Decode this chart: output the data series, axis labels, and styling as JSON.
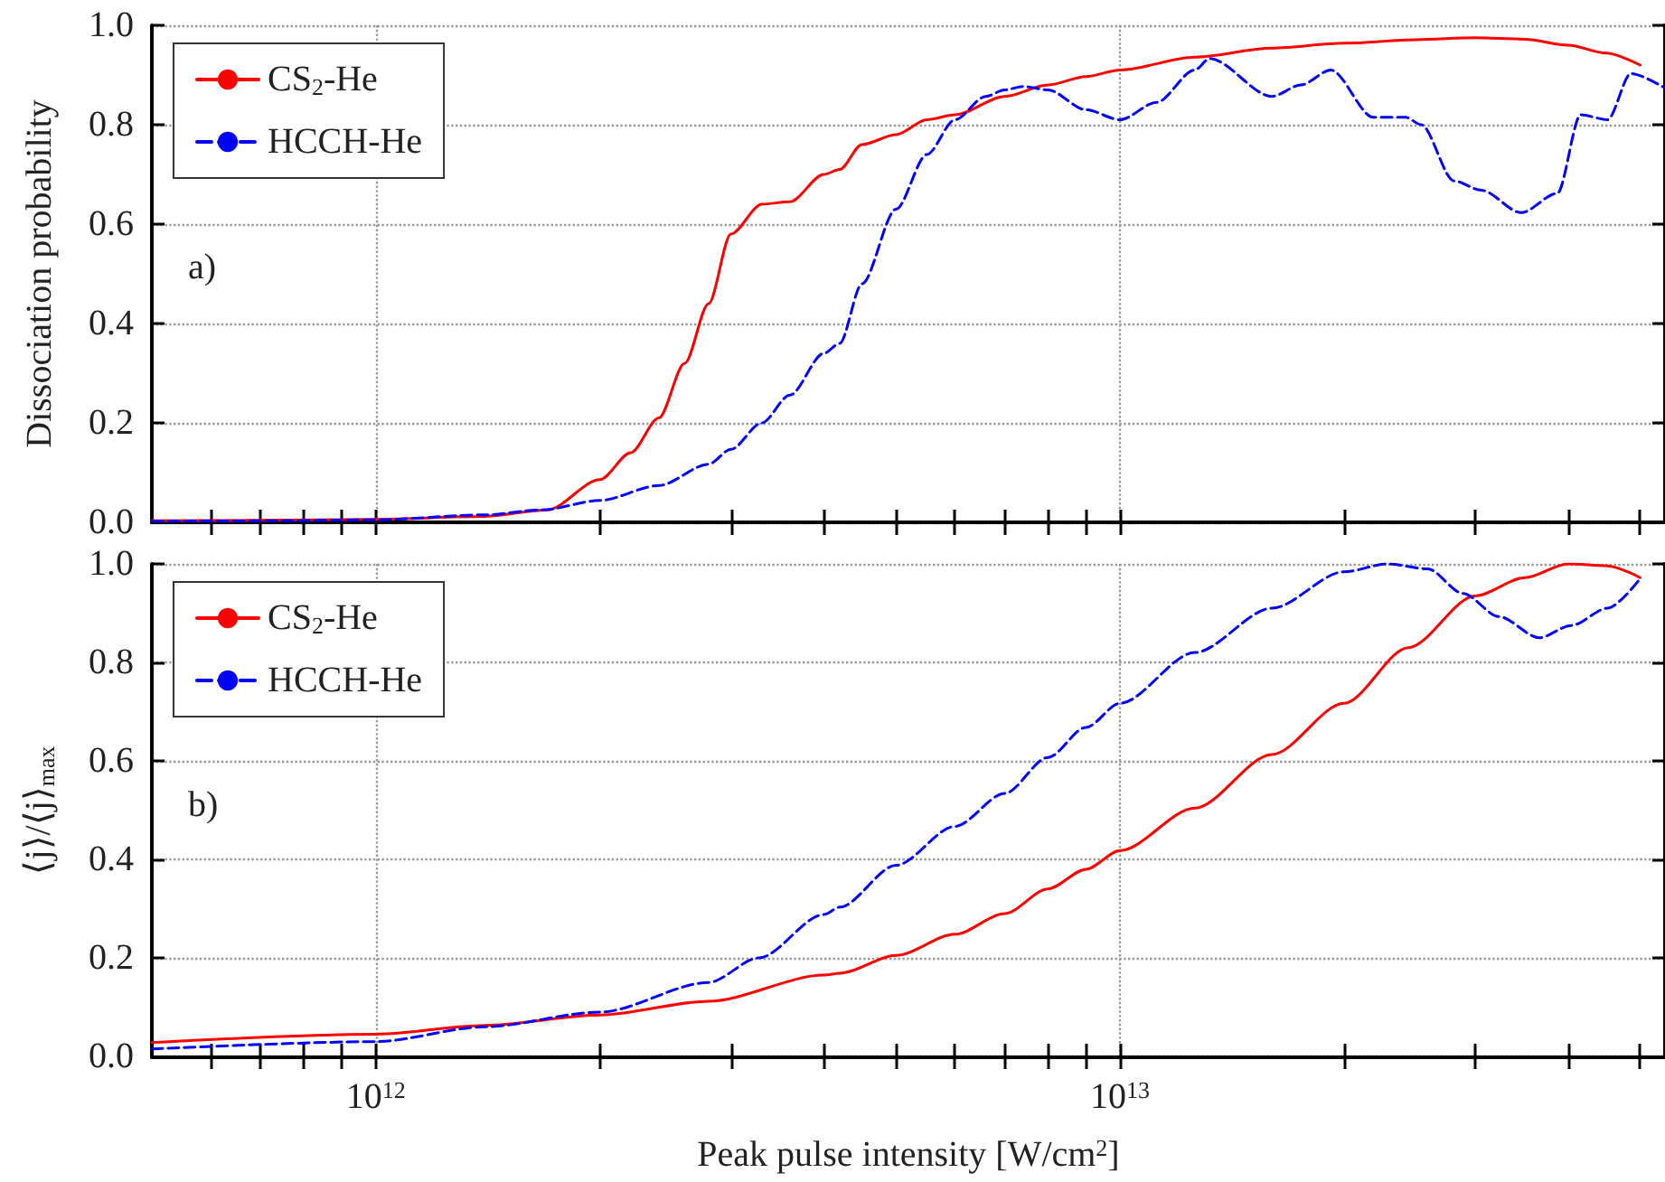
{
  "chart_data": [
    {
      "type": "line",
      "ylabel": "Dissociation probability",
      "annotations": [
        "a)"
      ],
      "log": "x",
      "grid": true,
      "legend": "top left",
      "marker": "none",
      "tick_labels": "y",
      "xlim": [
        500000000000.0,
        54000000000000.0
      ],
      "xticks": [
        {
          "value": 600000000000.0,
          "label": null
        },
        {
          "value": 700000000000.0,
          "label": null
        },
        {
          "value": 800000000000.0,
          "label": null
        },
        {
          "value": 900000000000.0,
          "label": null
        },
        {
          "value": 1000000000000.0,
          "label": null
        },
        {
          "value": 2000000000000.0,
          "label": null
        },
        {
          "value": 3000000000000.0,
          "label": null
        },
        {
          "value": 4000000000000.0,
          "label": null
        },
        {
          "value": 5000000000000.0,
          "label": null
        },
        {
          "value": 6000000000000.0,
          "label": null
        },
        {
          "value": 7000000000000.0,
          "label": null
        },
        {
          "value": 8000000000000.0,
          "label": null
        },
        {
          "value": 9000000000000.0,
          "label": null
        },
        {
          "value": 10000000000000.0,
          "label": null
        },
        {
          "value": 20000000000000.0,
          "label": null
        },
        {
          "value": 30000000000000.0,
          "label": null
        },
        {
          "value": 40000000000000.0,
          "label": null
        },
        {
          "value": 50000000000000.0,
          "label": null
        }
      ],
      "ylim": [
        0,
        1
      ],
      "yticks": [
        {
          "value": 0,
          "label": "0.0"
        },
        {
          "value": 0.2,
          "label": "0.2"
        },
        {
          "value": 0.4,
          "label": "0.4"
        },
        {
          "value": 0.6,
          "label": "0.6"
        },
        {
          "value": 0.8,
          "label": "0.8"
        },
        {
          "value": 1,
          "label": "1.0"
        }
      ],
      "series": [
        {
          "name": "CS$_{2}$-He",
          "color": "#ff0000",
          "line_style": "solid",
          "x": [
            500000000000.0,
            700000000000.0,
            1000000000000.0,
            1400000000000.0,
            1700000000000.0,
            2000000000000.0,
            2200000000000.0,
            2400000000000.0,
            2600000000000.0,
            2800000000000.0,
            3000000000000.0,
            3300000000000.0,
            3600000000000.0,
            4000000000000.0,
            4200000000000.0,
            4500000000000.0,
            5000000000000.0,
            5500000000000.0,
            6000000000000.0,
            7000000000000.0,
            8000000000000.0,
            9000000000000.0,
            10000000000000.0,
            12600000000000.0,
            16000000000000.0,
            20000000000000.0,
            25000000000000.0,
            30000000000000.0,
            35000000000000.0,
            40000000000000.0,
            45000000000000.0,
            50000000000000.0
          ],
          "values": [
            0.003,
            0.004,
            0.006,
            0.012,
            0.025,
            0.086,
            0.14,
            0.21,
            0.32,
            0.44,
            0.58,
            0.64,
            0.645,
            0.7,
            0.71,
            0.76,
            0.78,
            0.81,
            0.82,
            0.857,
            0.88,
            0.897,
            0.91,
            0.936,
            0.954,
            0.964,
            0.971,
            0.975,
            0.972,
            0.96,
            0.944,
            0.92
          ]
        },
        {
          "name": "HCCH-He",
          "color": "#0000ff",
          "line_style": "dashed",
          "x": [
            500000000000.0,
            700000000000.0,
            1000000000000.0,
            1400000000000.0,
            1670000000000.0,
            2000000000000.0,
            2400000000000.0,
            2800000000000.0,
            3000000000000.0,
            3300000000000.0,
            3600000000000.0,
            4000000000000.0,
            4200000000000.0,
            4500000000000.0,
            5000000000000.0,
            5500000000000.0,
            6000000000000.0,
            6600000000000.0,
            7000000000000.0,
            7400000000000.0,
            8000000000000.0,
            9000000000000.0,
            10000000000000.0,
            11200000000000.0,
            12600000000000.0,
            13200000000000.0,
            16000000000000.0,
            17500000000000.0,
            19200000000000.0,
            21900000000000.0,
            24200000000000.0,
            25400000000000.0,
            28100000000000.0,
            30600000000000.0,
            34600000000000.0,
            38700000000000.0,
            41600000000000.0,
            45200000000000.0,
            48600000000000.0,
            53800000000000.0
          ],
          "values": [
            0.002,
            0.003,
            0.005,
            0.015,
            0.025,
            0.044,
            0.074,
            0.117,
            0.147,
            0.2,
            0.256,
            0.34,
            0.36,
            0.48,
            0.63,
            0.74,
            0.81,
            0.857,
            0.87,
            0.877,
            0.87,
            0.83,
            0.81,
            0.845,
            0.91,
            0.933,
            0.857,
            0.88,
            0.91,
            0.815,
            0.815,
            0.8,
            0.687,
            0.668,
            0.623,
            0.662,
            0.82,
            0.81,
            0.903,
            0.875
          ]
        }
      ]
    },
    {
      "type": "line",
      "xlabel": "Peak pulse intensity [W/cm$^{2}$]",
      "ylabel": "⟨j⟩/⟨j⟩$_{max}$",
      "annotations": [
        "b)"
      ],
      "log": "x",
      "grid": true,
      "legend": "top left",
      "marker": "none",
      "xlim": [
        500000000000.0,
        54000000000000.0
      ],
      "xticks": [
        {
          "value": 600000000000.0,
          "label": null
        },
        {
          "value": 700000000000.0,
          "label": null
        },
        {
          "value": 800000000000.0,
          "label": null
        },
        {
          "value": 900000000000.0,
          "label": null
        },
        {
          "value": 1000000000000.0,
          "label": "10$^{12}$"
        },
        {
          "value": 2000000000000.0,
          "label": null
        },
        {
          "value": 3000000000000.0,
          "label": null
        },
        {
          "value": 4000000000000.0,
          "label": null
        },
        {
          "value": 5000000000000.0,
          "label": null
        },
        {
          "value": 6000000000000.0,
          "label": null
        },
        {
          "value": 7000000000000.0,
          "label": null
        },
        {
          "value": 8000000000000.0,
          "label": null
        },
        {
          "value": 9000000000000.0,
          "label": null
        },
        {
          "value": 10000000000000.0,
          "label": "10$^{13}$"
        },
        {
          "value": 20000000000000.0,
          "label": null
        },
        {
          "value": 30000000000000.0,
          "label": null
        },
        {
          "value": 40000000000000.0,
          "label": null
        },
        {
          "value": 50000000000000.0,
          "label": null
        }
      ],
      "ylim": [
        0,
        1
      ],
      "yticks": [
        {
          "value": 0,
          "label": "0.0"
        },
        {
          "value": 0.2,
          "label": "0.2"
        },
        {
          "value": 0.4,
          "label": "0.4"
        },
        {
          "value": 0.6,
          "label": "0.6"
        },
        {
          "value": 0.8,
          "label": "0.8"
        },
        {
          "value": 1,
          "label": "1.0"
        }
      ],
      "series": [
        {
          "name": "CS$_{2}$-He",
          "color": "#ff0000",
          "line_style": "solid",
          "x": [
            500000000000.0,
            1000000000000.0,
            1400000000000.0,
            2000000000000.0,
            2800000000000.0,
            4000000000000.0,
            4200000000000.0,
            5000000000000.0,
            6000000000000.0,
            7000000000000.0,
            8000000000000.0,
            9000000000000.0,
            10000000000000.0,
            12600000000000.0,
            16000000000000.0,
            20000000000000.0,
            24400000000000.0,
            30000000000000.0,
            35000000000000.0,
            40000000000000.0,
            45200000000000.0,
            50000000000000.0
          ],
          "values": [
            0.028,
            0.045,
            0.063,
            0.084,
            0.112,
            0.165,
            0.169,
            0.205,
            0.248,
            0.29,
            0.34,
            0.38,
            0.418,
            0.504,
            0.613,
            0.717,
            0.83,
            0.935,
            0.972,
            1.0,
            0.996,
            0.972
          ]
        },
        {
          "name": "HCCH-He",
          "color": "#0000ff",
          "line_style": "dashed",
          "x": [
            500000000000.0,
            1000000000000.0,
            1400000000000.0,
            2000000000000.0,
            2800000000000.0,
            3270000000000.0,
            4000000000000.0,
            4200000000000.0,
            5000000000000.0,
            6000000000000.0,
            7000000000000.0,
            8000000000000.0,
            9000000000000.0,
            10000000000000.0,
            12600000000000.0,
            16000000000000.0,
            20000000000000.0,
            22900000000000.0,
            25900000000000.0,
            28900000000000.0,
            32300000000000.0,
            36600000000000.0,
            40400000000000.0,
            45200000000000.0,
            50000000000000.0
          ],
          "values": [
            0.015,
            0.03,
            0.06,
            0.09,
            0.15,
            0.2,
            0.288,
            0.303,
            0.388,
            0.467,
            0.534,
            0.607,
            0.668,
            0.717,
            0.82,
            0.91,
            0.984,
            1.0,
            0.99,
            0.94,
            0.893,
            0.85,
            0.875,
            0.91,
            0.97
          ]
        }
      ]
    }
  ]
}
